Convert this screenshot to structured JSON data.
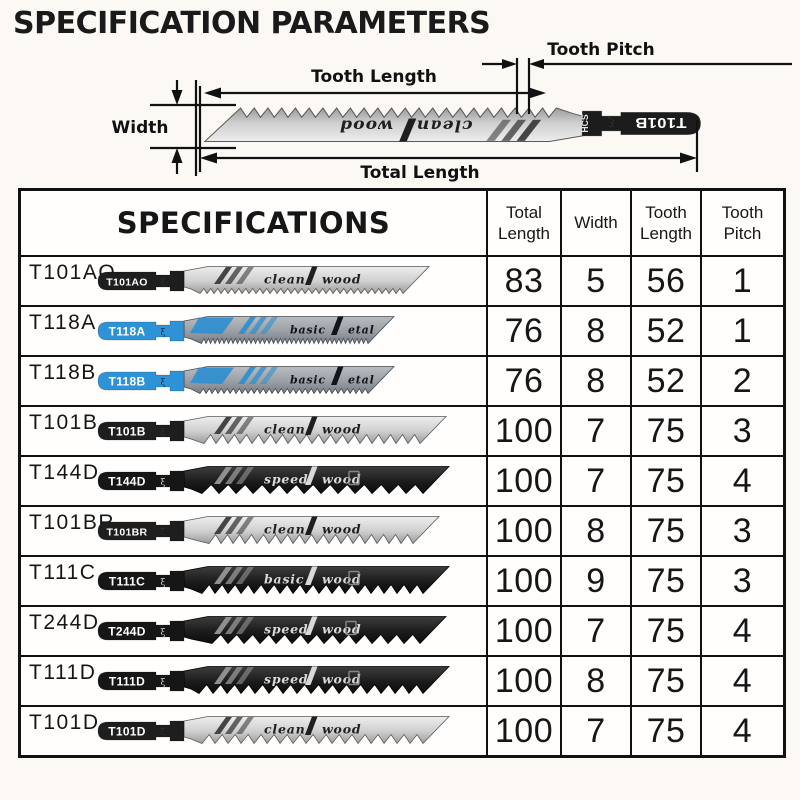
{
  "page": {
    "title": "SPECIFICATION PARAMETERS",
    "background": "#fcf9f4"
  },
  "diagram": {
    "labels": {
      "tooth_pitch": "Tooth Pitch",
      "tooth_length": "Tooth Length",
      "width": "Width",
      "total_length": "Total Length"
    },
    "blade": {
      "label": "T101B",
      "grade": "HCS",
      "brand_w1": "clean",
      "brand_w2": "wood",
      "style": "silver",
      "shank_color": "#1c1c1c",
      "tw": 10,
      "len": 365
    }
  },
  "table": {
    "header": {
      "specifications": "SPECIFICATIONS",
      "columns": [
        "Total Length",
        "Width",
        "Tooth Length",
        "Tooth Pitch"
      ]
    },
    "rows": [
      {
        "model": "T101AO",
        "values": [
          "83",
          "5",
          "56",
          "1"
        ],
        "blade": {
          "label": "T101AO",
          "style": "silver",
          "shank_color": "#1e1e1e",
          "brand_w1": "clean",
          "brand_w2": "wood",
          "tw": 7,
          "len": 335
        }
      },
      {
        "model": "T118A",
        "values": [
          "76",
          "8",
          "52",
          "1"
        ],
        "blade": {
          "label": "T118A",
          "style": "steel",
          "shank_color": "#2e93d6",
          "brand_w1": "basic",
          "brand_w2": "etal",
          "tw": 4.5,
          "len": 300
        }
      },
      {
        "model": "T118B",
        "values": [
          "76",
          "8",
          "52",
          "2"
        ],
        "blade": {
          "label": "T118B",
          "style": "steel",
          "shank_color": "#2e93d6",
          "brand_w1": "basic",
          "brand_w2": "etal",
          "tw": 6,
          "len": 300
        }
      },
      {
        "model": "T101B",
        "values": [
          "100",
          "7",
          "75",
          "3"
        ],
        "blade": {
          "label": "T101B",
          "style": "silver",
          "shank_color": "#1e1e1e",
          "brand_w1": "clean",
          "brand_w2": "wood",
          "tw": 12,
          "len": 352
        }
      },
      {
        "model": "T144D",
        "values": [
          "100",
          "7",
          "75",
          "4"
        ],
        "blade": {
          "label": "T144D",
          "style": "black",
          "shank_color": "#161616",
          "brand_w1": "speed",
          "brand_w2": "wood",
          "tw": 17,
          "len": 355
        }
      },
      {
        "model": "T101BR",
        "values": [
          "100",
          "8",
          "75",
          "3"
        ],
        "blade": {
          "label": "T101BR",
          "style": "silver",
          "shank_color": "#1e1e1e",
          "brand_w1": "clean",
          "brand_w2": "wood",
          "tw": 12,
          "len": 345
        }
      },
      {
        "model": "T111C",
        "values": [
          "100",
          "9",
          "75",
          "3"
        ],
        "blade": {
          "label": "T111C",
          "style": "black",
          "shank_color": "#161616",
          "brand_w1": "basic",
          "brand_w2": "wood",
          "tw": 13,
          "len": 355
        }
      },
      {
        "model": "T244D",
        "values": [
          "100",
          "7",
          "75",
          "4"
        ],
        "blade": {
          "label": "T244D",
          "style": "black",
          "shank_color": "#161616",
          "brand_w1": "speed",
          "brand_w2": "wood",
          "tw": 16,
          "len": 352
        }
      },
      {
        "model": "T111D",
        "values": [
          "100",
          "8",
          "75",
          "4"
        ],
        "blade": {
          "label": "T111D",
          "style": "black",
          "shank_color": "#161616",
          "brand_w1": "speed",
          "brand_w2": "wood",
          "tw": 14,
          "len": 355
        }
      },
      {
        "model": "T101D",
        "values": [
          "100",
          "7",
          "75",
          "4"
        ],
        "blade": {
          "label": "T101D",
          "style": "silver",
          "shank_color": "#1e1e1e",
          "brand_w1": "clean",
          "brand_w2": "wood",
          "tw": 13,
          "len": 355
        }
      }
    ]
  },
  "palettes": {
    "silver": {
      "body_top": "#ededed",
      "body_mid": "#cfcfcf",
      "body_bot": "#9c9c9c",
      "brand": "#1f1f1f",
      "stripe": "#3c3c3c",
      "outline": "#5a5a5a",
      "neck_mark": "#2e2e2e"
    },
    "steel": {
      "body_top": "#b9bdc1",
      "body_mid": "#999fa5",
      "body_bot": "#777d83",
      "brand": "#0f151b",
      "stripe": "#2f8fd0",
      "outline": "#474c51",
      "neck_mark": "#14304a"
    },
    "black": {
      "body_top": "#3d3d3d",
      "body_mid": "#1c1c1c",
      "body_bot": "#0c0c0c",
      "brand": "#d9d9d9",
      "stripe": "#969696",
      "outline": "#000000",
      "neck_mark": "#cfcfcf"
    }
  }
}
